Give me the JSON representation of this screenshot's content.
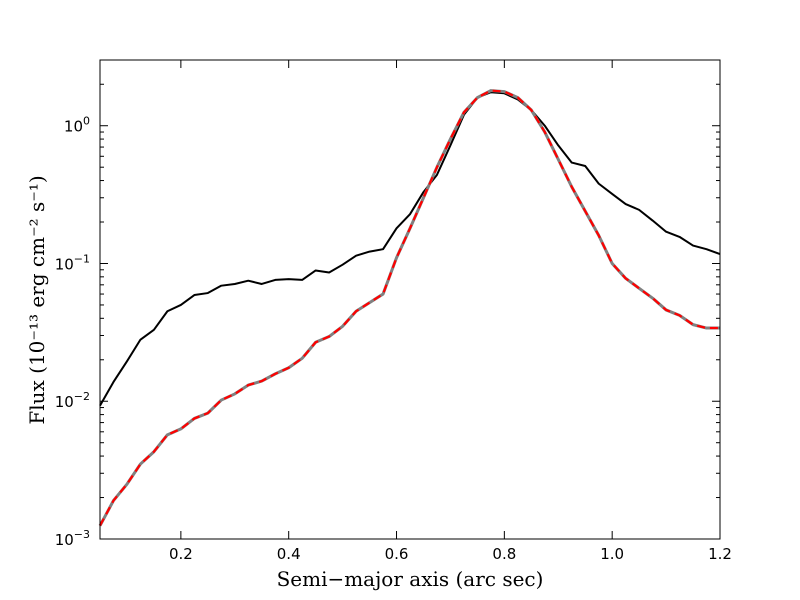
{
  "chart_data": {
    "type": "line",
    "title": "",
    "xlabel": "Semi−major axis (arc sec)",
    "ylabel": "Flux (10⁻¹³ erg cm⁻² s⁻¹)",
    "xlim": [
      0.05,
      1.2
    ],
    "ylim": [
      0.001,
      3.0
    ],
    "yscale": "log",
    "grid": false,
    "x_ticks": [
      0.2,
      0.4,
      0.6,
      0.8,
      1.0,
      1.2
    ],
    "x_tick_labels": [
      "0.2",
      "0.4",
      "0.6",
      "0.8",
      "1.0",
      "1.2"
    ],
    "y_ticks": [
      0.001,
      0.01,
      0.1,
      1.0
    ],
    "y_tick_labels": [
      {
        "base": "10",
        "exp": "-3"
      },
      {
        "base": "10",
        "exp": "-2"
      },
      {
        "base": "10",
        "exp": "-1"
      },
      {
        "base": "10",
        "exp": "0"
      }
    ],
    "x": [
      0.05,
      0.075,
      0.1,
      0.125,
      0.15,
      0.175,
      0.2,
      0.225,
      0.25,
      0.275,
      0.3,
      0.325,
      0.35,
      0.375,
      0.4,
      0.425,
      0.45,
      0.475,
      0.5,
      0.525,
      0.55,
      0.575,
      0.6,
      0.625,
      0.65,
      0.675,
      0.7,
      0.725,
      0.75,
      0.775,
      0.8,
      0.825,
      0.85,
      0.875,
      0.9,
      0.925,
      0.95,
      0.975,
      1.0,
      1.025,
      1.05,
      1.075,
      1.1,
      1.125,
      1.15,
      1.175,
      1.2
    ],
    "series": [
      {
        "color": "#000000",
        "style": "solid",
        "values": [
          0.0093,
          0.0138,
          0.0195,
          0.028,
          0.033,
          0.045,
          0.05,
          0.059,
          0.061,
          0.069,
          0.071,
          0.075,
          0.071,
          0.076,
          0.077,
          0.076,
          0.089,
          0.086,
          0.098,
          0.114,
          0.122,
          0.127,
          0.18,
          0.228,
          0.33,
          0.44,
          0.72,
          1.2,
          1.6,
          1.75,
          1.72,
          1.55,
          1.3,
          1.0,
          0.72,
          0.54,
          0.51,
          0.38,
          0.32,
          0.27,
          0.245,
          0.205,
          0.17,
          0.156,
          0.135,
          0.127,
          0.117
        ]
      },
      {
        "color": "#808080",
        "style": "solid",
        "values": [
          0.00125,
          0.0019,
          0.0025,
          0.0035,
          0.0043,
          0.0057,
          0.0063,
          0.0075,
          0.0082,
          0.0102,
          0.0113,
          0.0131,
          0.014,
          0.0158,
          0.0175,
          0.0205,
          0.0268,
          0.0295,
          0.035,
          0.045,
          0.052,
          0.06,
          0.11,
          0.18,
          0.3,
          0.5,
          0.8,
          1.25,
          1.6,
          1.8,
          1.77,
          1.6,
          1.3,
          0.9,
          0.57,
          0.36,
          0.24,
          0.16,
          0.1,
          0.078,
          0.066,
          0.056,
          0.046,
          0.042,
          0.036,
          0.034,
          0.034
        ]
      },
      {
        "color": "#ff0000",
        "style": "dashed",
        "values": [
          0.00125,
          0.0019,
          0.0025,
          0.0035,
          0.0043,
          0.0057,
          0.0063,
          0.0075,
          0.0082,
          0.0102,
          0.0113,
          0.0131,
          0.014,
          0.0158,
          0.0175,
          0.0205,
          0.0268,
          0.0295,
          0.035,
          0.045,
          0.052,
          0.06,
          0.11,
          0.18,
          0.3,
          0.5,
          0.8,
          1.25,
          1.6,
          1.8,
          1.77,
          1.6,
          1.3,
          0.9,
          0.57,
          0.36,
          0.24,
          0.16,
          0.1,
          0.078,
          0.066,
          0.056,
          0.046,
          0.042,
          0.036,
          0.034,
          0.034
        ]
      }
    ]
  }
}
